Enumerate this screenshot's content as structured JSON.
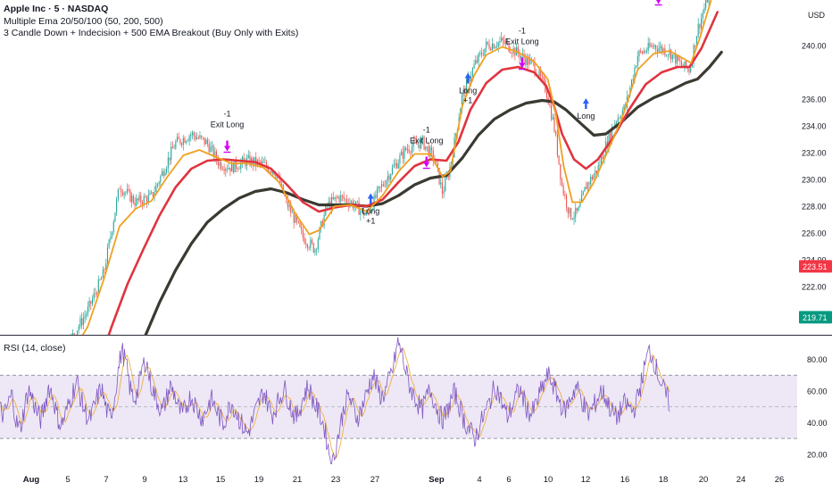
{
  "symbol_title": "Apple Inc · 5 · NASDAQ",
  "indicator_ema": "Multiple Ema 20/50/100 (50, 200, 500)",
  "indicator_strategy": "3 Candle Down + Indecision + 500 EMA Breakout (Buy Only with Exits)",
  "rsi_label": "RSI (14, close)",
  "currency": "USD",
  "colors": {
    "up": "#26a69a",
    "down": "#ef5350",
    "ema_fast": "#f0a020",
    "ema_mid": "#e0343f",
    "ema_slow": "#3a3a32",
    "rsi_line": "#7e57c2",
    "rsi_ma": "#f0b040",
    "rsi_band": "#ede7f6",
    "long_arrow": "#2962ff",
    "exit_arrow": "#d500f9",
    "badge_red": "#f23645",
    "badge_green": "#089981"
  },
  "chart_data": [
    {
      "type": "candlestick",
      "title": "Apple Inc · 5 · NASDAQ",
      "ylim": [
        218.4,
        243.4
      ],
      "price_ticks": [
        "222.00",
        "224.00",
        "226.00",
        "228.00",
        "230.00",
        "232.00",
        "234.00",
        "236.00",
        "240.00"
      ],
      "price_tick_values": [
        222,
        224,
        226,
        228,
        230,
        232,
        234,
        236,
        240
      ],
      "last_price_badges": [
        {
          "label": "223.51",
          "value": 223.51,
          "color": "#f23645"
        },
        {
          "label": "219.71",
          "value": 219.71,
          "color": "#089981"
        }
      ],
      "x_labels": [
        "Aug",
        "5",
        "7",
        "9",
        "13",
        "15",
        "19",
        "21",
        "23",
        "27",
        "Sep",
        "4",
        "6",
        "10",
        "12",
        "16",
        "18",
        "20",
        "24",
        "26"
      ],
      "bold_x_labels": [
        "Aug",
        "Sep"
      ],
      "price_path": [
        {
          "t": 0,
          "p": 212
        },
        {
          "t": 4,
          "p": 215
        },
        {
          "t": 8,
          "p": 217.2
        },
        {
          "t": 11,
          "p": 220.2
        },
        {
          "t": 13,
          "p": 223
        },
        {
          "t": 15,
          "p": 229.5
        },
        {
          "t": 17,
          "p": 228.3
        },
        {
          "t": 19,
          "p": 228.7
        },
        {
          "t": 22,
          "p": 232.7
        },
        {
          "t": 24,
          "p": 233.4
        },
        {
          "t": 26,
          "p": 232.7
        },
        {
          "t": 27.5,
          "p": 231.2
        },
        {
          "t": 29,
          "p": 230.9
        },
        {
          "t": 31,
          "p": 231.4
        },
        {
          "t": 33,
          "p": 231.1
        },
        {
          "t": 34.5,
          "p": 230.6
        },
        {
          "t": 36,
          "p": 228.2
        },
        {
          "t": 38,
          "p": 225.7
        },
        {
          "t": 39.5,
          "p": 224.8
        },
        {
          "t": 41,
          "p": 228
        },
        {
          "t": 42.5,
          "p": 228.7
        },
        {
          "t": 44,
          "p": 228.3
        },
        {
          "t": 46,
          "p": 227.3
        },
        {
          "t": 47.5,
          "p": 229.1
        },
        {
          "t": 49,
          "p": 230.6
        },
        {
          "t": 51,
          "p": 232.3
        },
        {
          "t": 53,
          "p": 232.8
        },
        {
          "t": 54.5,
          "p": 231.5
        },
        {
          "t": 55.5,
          "p": 229
        },
        {
          "t": 56.5,
          "p": 231
        },
        {
          "t": 58,
          "p": 236.3
        },
        {
          "t": 59.5,
          "p": 238.5
        },
        {
          "t": 61,
          "p": 240
        },
        {
          "t": 63,
          "p": 240.3
        },
        {
          "t": 65,
          "p": 239.4
        },
        {
          "t": 67,
          "p": 238.5
        },
        {
          "t": 68.5,
          "p": 236.7
        },
        {
          "t": 69.5,
          "p": 234
        },
        {
          "t": 70.5,
          "p": 229.5
        },
        {
          "t": 71.5,
          "p": 227.3
        },
        {
          "t": 72.5,
          "p": 227.5
        },
        {
          "t": 73.5,
          "p": 229.5
        },
        {
          "t": 75,
          "p": 230.8
        },
        {
          "t": 77,
          "p": 234.2
        },
        {
          "t": 78.5,
          "p": 235.5
        },
        {
          "t": 80,
          "p": 239.3
        },
        {
          "t": 82,
          "p": 240
        },
        {
          "t": 84,
          "p": 239.5
        },
        {
          "t": 85.5,
          "p": 238.5
        },
        {
          "t": 86.5,
          "p": 238.2
        },
        {
          "t": 87.5,
          "p": 241.2
        },
        {
          "t": 89,
          "p": 244
        }
      ],
      "ema_fast": [
        {
          "t": 9,
          "p": 217
        },
        {
          "t": 11,
          "p": 219
        },
        {
          "t": 13,
          "p": 222.5
        },
        {
          "t": 15,
          "p": 226.5
        },
        {
          "t": 17,
          "p": 227.8
        },
        {
          "t": 19,
          "p": 228.4
        },
        {
          "t": 21,
          "p": 230.2
        },
        {
          "t": 23,
          "p": 231.8
        },
        {
          "t": 25,
          "p": 232.2
        },
        {
          "t": 27,
          "p": 231.7
        },
        {
          "t": 29,
          "p": 231.2
        },
        {
          "t": 31,
          "p": 231.2
        },
        {
          "t": 33,
          "p": 230.9
        },
        {
          "t": 35,
          "p": 229.8
        },
        {
          "t": 37,
          "p": 227.5
        },
        {
          "t": 38.8,
          "p": 225.9
        },
        {
          "t": 40,
          "p": 226.2
        },
        {
          "t": 42,
          "p": 228
        },
        {
          "t": 44,
          "p": 228.1
        },
        {
          "t": 46,
          "p": 227.6
        },
        {
          "t": 48,
          "p": 228.8
        },
        {
          "t": 50,
          "p": 230.6
        },
        {
          "t": 52,
          "p": 231.9
        },
        {
          "t": 54,
          "p": 231.9
        },
        {
          "t": 55.5,
          "p": 230.2
        },
        {
          "t": 56.5,
          "p": 230.6
        },
        {
          "t": 58,
          "p": 235.5
        },
        {
          "t": 59.5,
          "p": 237.8
        },
        {
          "t": 61,
          "p": 239.3
        },
        {
          "t": 63,
          "p": 239.9
        },
        {
          "t": 65,
          "p": 239.5
        },
        {
          "t": 67,
          "p": 238.8
        },
        {
          "t": 68.7,
          "p": 237.5
        },
        {
          "t": 69.7,
          "p": 235
        },
        {
          "t": 70.7,
          "p": 231
        },
        {
          "t": 71.8,
          "p": 228.3
        },
        {
          "t": 73,
          "p": 228.3
        },
        {
          "t": 74.5,
          "p": 229.8
        },
        {
          "t": 76,
          "p": 231.8
        },
        {
          "t": 78,
          "p": 234.5
        },
        {
          "t": 80,
          "p": 238.2
        },
        {
          "t": 82,
          "p": 239.4
        },
        {
          "t": 84,
          "p": 239.6
        },
        {
          "t": 85.5,
          "p": 239.1
        },
        {
          "t": 86.7,
          "p": 238.7
        },
        {
          "t": 87.8,
          "p": 240.6
        },
        {
          "t": 89.2,
          "p": 243.4
        }
      ],
      "ema_mid": [
        {
          "t": 12,
          "p": 215.5
        },
        {
          "t": 14,
          "p": 219
        },
        {
          "t": 16,
          "p": 222.2
        },
        {
          "t": 18,
          "p": 224.8
        },
        {
          "t": 20,
          "p": 227.3
        },
        {
          "t": 22,
          "p": 229.4
        },
        {
          "t": 24,
          "p": 230.8
        },
        {
          "t": 26,
          "p": 231.4
        },
        {
          "t": 28,
          "p": 231.5
        },
        {
          "t": 30,
          "p": 231.4
        },
        {
          "t": 32,
          "p": 231.3
        },
        {
          "t": 34,
          "p": 230.8
        },
        {
          "t": 36,
          "p": 229.6
        },
        {
          "t": 38,
          "p": 228.3
        },
        {
          "t": 40,
          "p": 227.6
        },
        {
          "t": 42,
          "p": 227.9
        },
        {
          "t": 44,
          "p": 228.1
        },
        {
          "t": 46,
          "p": 228
        },
        {
          "t": 48,
          "p": 228.5
        },
        {
          "t": 50,
          "p": 229.8
        },
        {
          "t": 52,
          "p": 231
        },
        {
          "t": 54,
          "p": 231.5
        },
        {
          "t": 56,
          "p": 231.4
        },
        {
          "t": 57.5,
          "p": 232.8
        },
        {
          "t": 59,
          "p": 235.2
        },
        {
          "t": 61,
          "p": 237.2
        },
        {
          "t": 63,
          "p": 238.2
        },
        {
          "t": 65,
          "p": 238.4
        },
        {
          "t": 67,
          "p": 238
        },
        {
          "t": 68.5,
          "p": 237
        },
        {
          "t": 69.5,
          "p": 235.5
        },
        {
          "t": 70.5,
          "p": 233.4
        },
        {
          "t": 72,
          "p": 231.5
        },
        {
          "t": 73.5,
          "p": 230.8
        },
        {
          "t": 75,
          "p": 231.5
        },
        {
          "t": 77,
          "p": 233.2
        },
        {
          "t": 79,
          "p": 235.3
        },
        {
          "t": 81,
          "p": 237.1
        },
        {
          "t": 83,
          "p": 238
        },
        {
          "t": 85,
          "p": 238.4
        },
        {
          "t": 86.5,
          "p": 238.4
        },
        {
          "t": 88,
          "p": 239.8
        },
        {
          "t": 90,
          "p": 242.5
        }
      ],
      "ema_slow": [
        {
          "t": 18,
          "p": 218
        },
        {
          "t": 20,
          "p": 220.8
        },
        {
          "t": 22,
          "p": 223.2
        },
        {
          "t": 24,
          "p": 225.2
        },
        {
          "t": 26,
          "p": 226.8
        },
        {
          "t": 28,
          "p": 227.8
        },
        {
          "t": 30,
          "p": 228.6
        },
        {
          "t": 32,
          "p": 229.1
        },
        {
          "t": 34,
          "p": 229.3
        },
        {
          "t": 36,
          "p": 229
        },
        {
          "t": 38,
          "p": 228.5
        },
        {
          "t": 40,
          "p": 228.1
        },
        {
          "t": 42,
          "p": 228.1
        },
        {
          "t": 44,
          "p": 228.1
        },
        {
          "t": 46,
          "p": 228
        },
        {
          "t": 48,
          "p": 228.2
        },
        {
          "t": 50,
          "p": 228.8
        },
        {
          "t": 52,
          "p": 229.6
        },
        {
          "t": 54,
          "p": 230.1
        },
        {
          "t": 56,
          "p": 230.3
        },
        {
          "t": 58,
          "p": 231.6
        },
        {
          "t": 60,
          "p": 233.3
        },
        {
          "t": 62,
          "p": 234.5
        },
        {
          "t": 64,
          "p": 235.2
        },
        {
          "t": 66,
          "p": 235.7
        },
        {
          "t": 68,
          "p": 235.9
        },
        {
          "t": 69.5,
          "p": 235.8
        },
        {
          "t": 71,
          "p": 235.2
        },
        {
          "t": 73,
          "p": 234.1
        },
        {
          "t": 74.5,
          "p": 233.3
        },
        {
          "t": 76,
          "p": 233.4
        },
        {
          "t": 78,
          "p": 234.3
        },
        {
          "t": 80,
          "p": 235.4
        },
        {
          "t": 82,
          "p": 236.1
        },
        {
          "t": 84,
          "p": 236.6
        },
        {
          "t": 86,
          "p": 237.2
        },
        {
          "t": 87.5,
          "p": 237.5
        },
        {
          "t": 89,
          "p": 238.4
        },
        {
          "t": 90.5,
          "p": 239.5
        }
      ],
      "signals": [
        {
          "kind": "exit",
          "t": 28.5,
          "p": 232.5,
          "labels": [
            "-1",
            "Exit Long"
          ]
        },
        {
          "kind": "long",
          "t": 46.5,
          "p": 228.3,
          "labels": [
            "Long",
            "+1"
          ]
        },
        {
          "kind": "exit",
          "t": 53.5,
          "p": 231.3,
          "labels": [
            "-1",
            "Exit Long"
          ]
        },
        {
          "kind": "long",
          "t": 58.7,
          "p": 237.3,
          "labels": [
            "Long",
            "+1"
          ]
        },
        {
          "kind": "exit",
          "t": 65.5,
          "p": 238.7,
          "labels": [
            "-1",
            "Exit Long"
          ]
        },
        {
          "kind": "long",
          "t": 73.5,
          "p": 235.4,
          "labels": [
            "Long"
          ]
        },
        {
          "kind": "exit",
          "t": 82.6,
          "p": 243.5,
          "labels": []
        }
      ]
    },
    {
      "type": "line",
      "title": "RSI (14, close)",
      "ylim": [
        12,
        95
      ],
      "y_ticks": [
        "20.00",
        "40.00",
        "60.00",
        "80.00"
      ],
      "y_tick_values": [
        20,
        40,
        60,
        80
      ],
      "bands": [
        30,
        50,
        70
      ],
      "series": [
        {
          "name": "RSI",
          "x_range": [
            0,
            84
          ],
          "values": [
            48,
            44,
            52,
            58,
            40,
            36,
            49,
            61,
            55,
            47,
            42,
            50,
            63,
            57,
            45,
            38,
            44,
            52,
            60,
            66,
            54,
            47,
            41,
            48,
            56,
            62,
            50,
            43,
            52,
            71,
            86,
            78,
            62,
            55,
            60,
            74,
            80,
            66,
            58,
            52,
            47,
            55,
            63,
            58,
            49,
            45,
            51,
            57,
            52,
            46,
            43,
            49,
            55,
            50,
            44,
            39,
            46,
            53,
            48,
            42,
            37,
            33,
            40,
            47,
            54,
            60,
            52,
            45,
            50,
            56,
            62,
            55,
            47,
            43,
            50,
            58,
            63,
            55,
            49,
            44,
            36,
            22,
            14,
            28,
            40,
            52,
            57,
            49,
            43,
            48,
            56,
            64,
            70,
            62,
            56,
            60,
            68,
            76,
            91,
            84,
            72,
            63,
            57,
            52,
            48,
            55,
            61,
            54,
            47,
            42,
            46,
            53,
            59,
            52,
            44,
            38,
            34,
            30,
            36,
            43,
            49,
            56,
            63,
            58,
            50,
            44,
            49,
            56,
            61,
            55,
            48,
            45,
            51,
            58,
            64,
            70,
            66,
            59,
            53,
            47,
            52,
            58,
            63,
            57,
            50,
            45,
            49,
            54,
            60,
            57,
            51,
            46,
            43,
            48,
            52,
            50,
            47,
            55,
            65,
            77,
            86,
            80,
            72,
            64,
            58,
            52
          ]
        }
      ]
    }
  ]
}
